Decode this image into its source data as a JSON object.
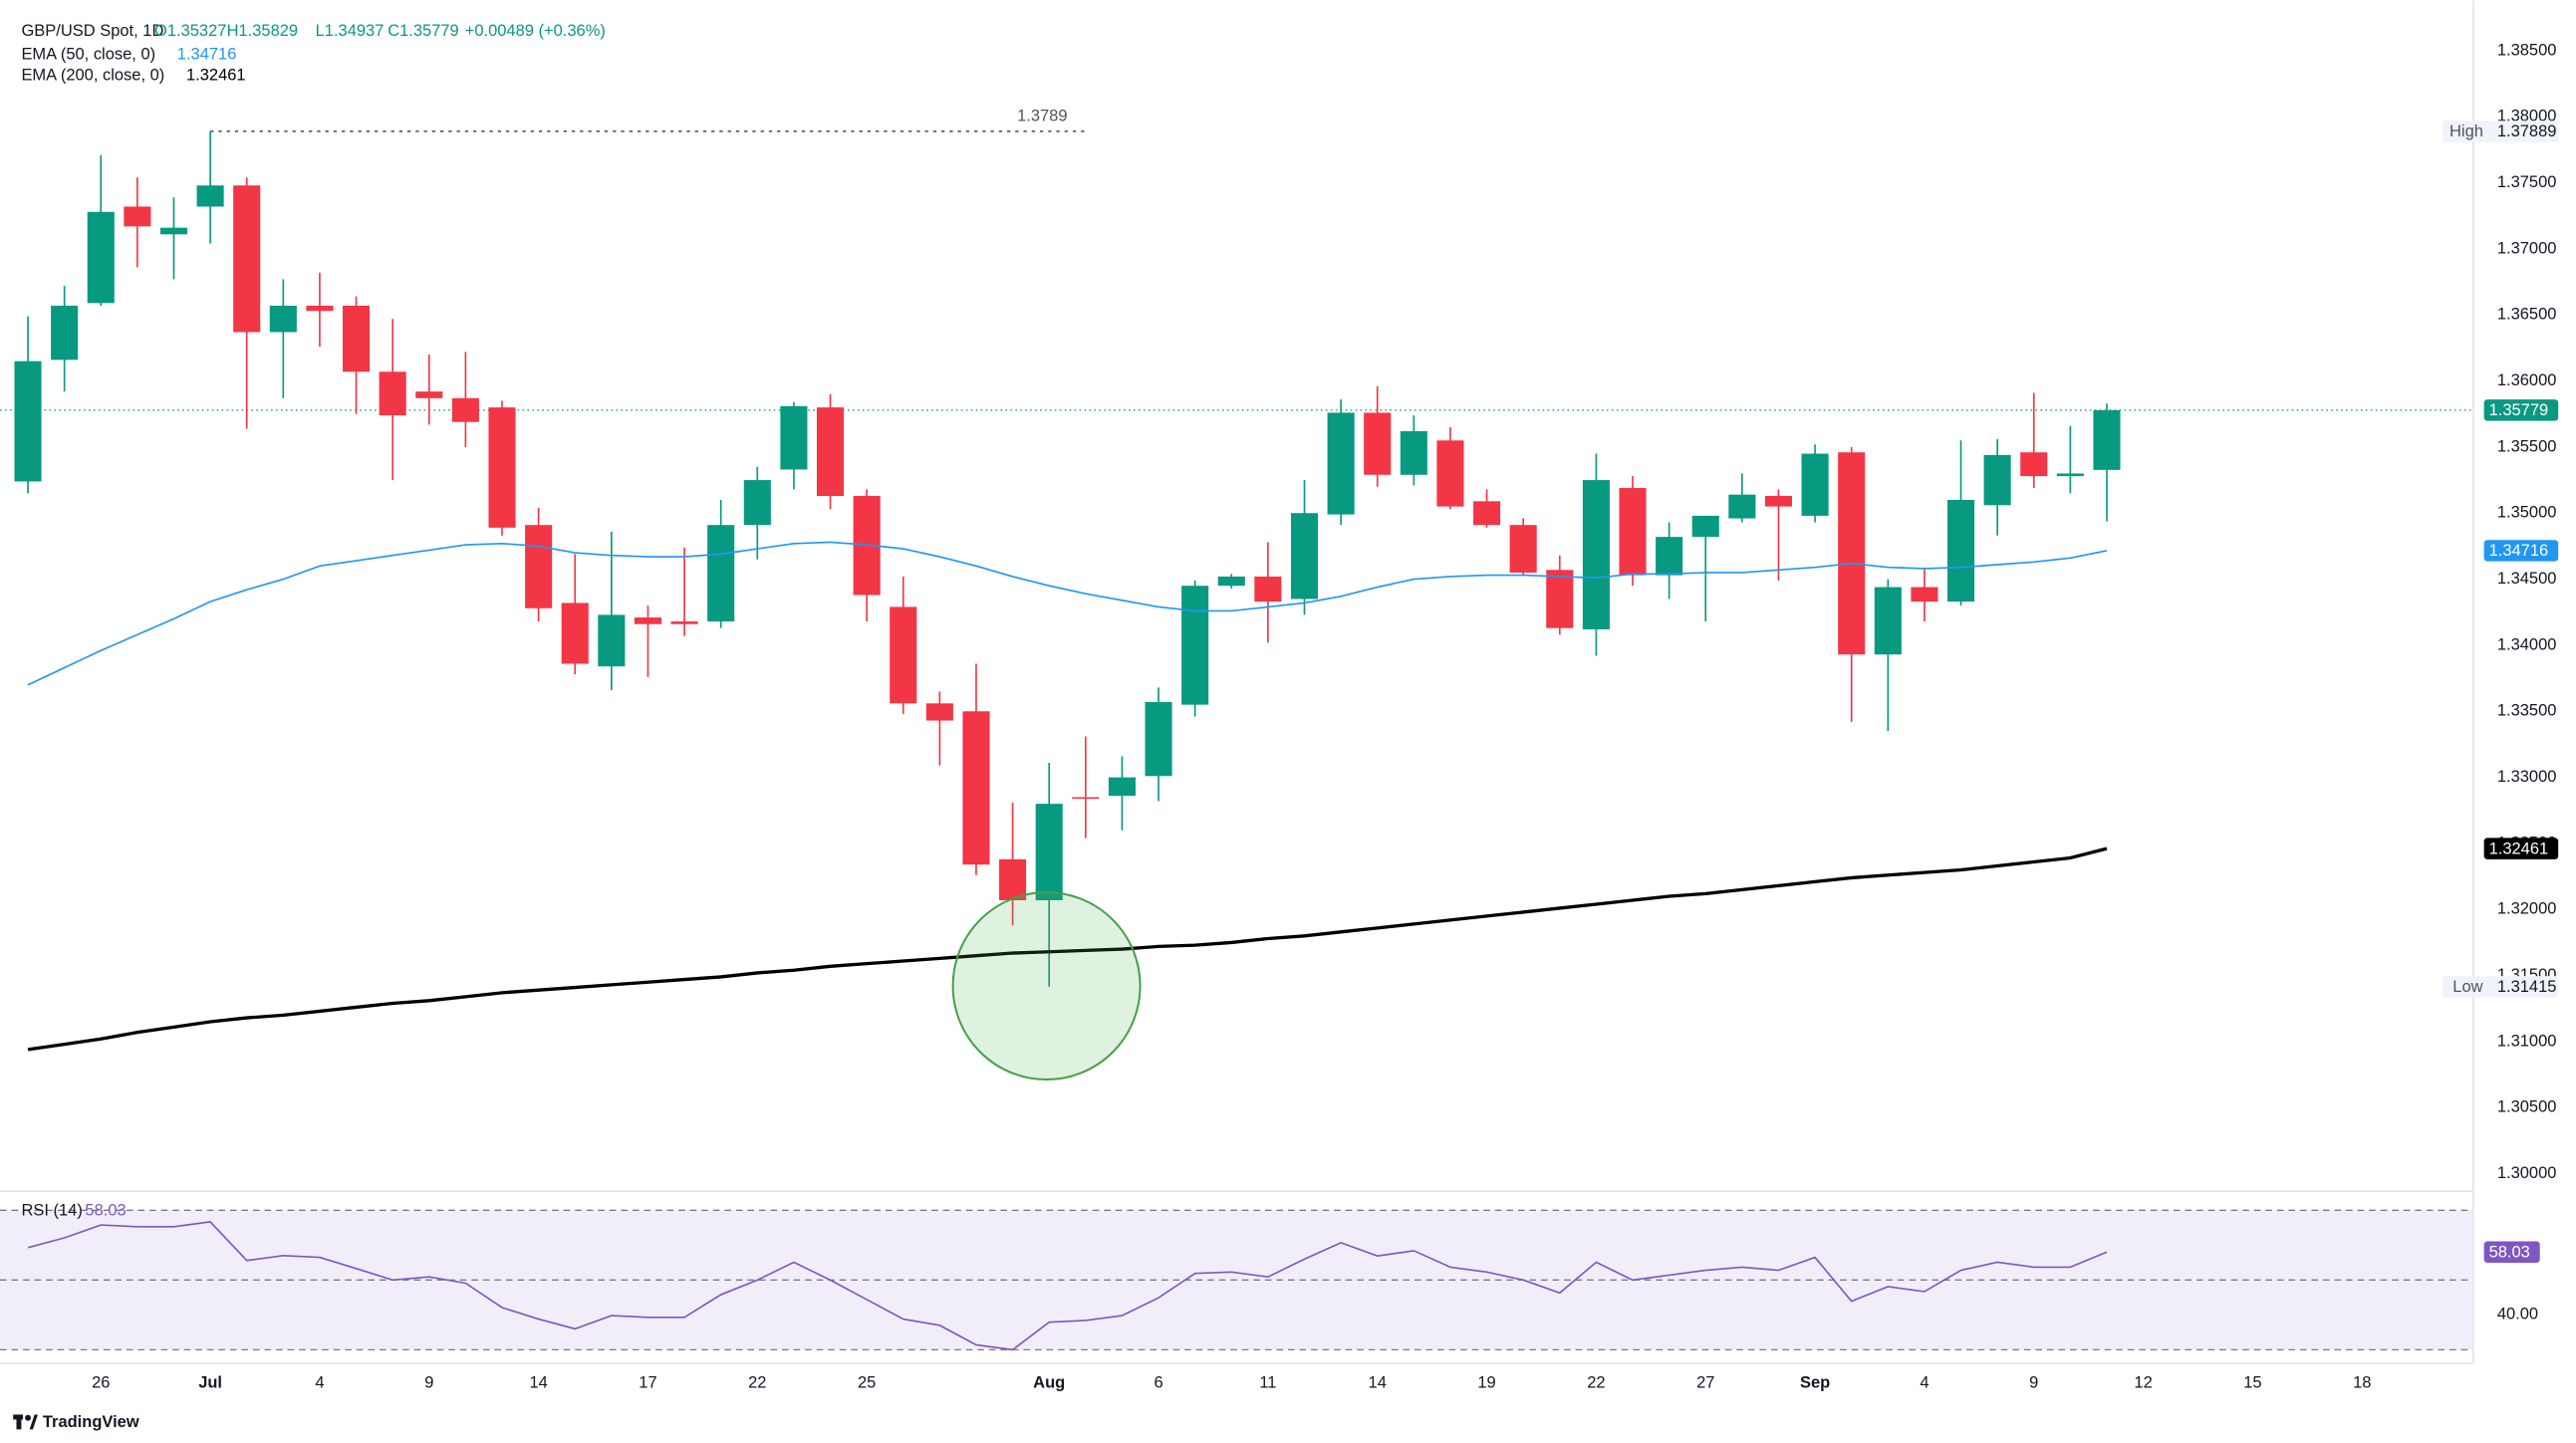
{
  "header": {
    "symbol": "GBP/USD Spot, 1D",
    "open": "O1.35327",
    "high": "H1.35829",
    "low": "L1.34937",
    "close": "C1.35779",
    "change": "+0.00489 (+0.36%)"
  },
  "branding": "TradingView",
  "chart_data": [
    {
      "type": "candlestick",
      "categories": [
        null,
        null,
        "26",
        null,
        null,
        "Jul",
        null,
        null,
        "4",
        null,
        null,
        "9",
        null,
        null,
        "14",
        null,
        null,
        "17",
        null,
        null,
        "22",
        null,
        null,
        "25",
        null,
        null,
        null,
        null,
        "Aug",
        null,
        null,
        "6",
        null,
        null,
        "11",
        null,
        null,
        "14",
        null,
        null,
        "19",
        null,
        null,
        "22",
        null,
        null,
        "27",
        null,
        null,
        "Sep",
        null,
        null,
        "4",
        null,
        null,
        "9",
        null,
        null,
        "12",
        null,
        null,
        "15",
        null,
        null,
        "18"
      ],
      "open": [
        1.3524,
        1.3616,
        1.3659,
        1.3732,
        1.3711,
        1.3732,
        1.3748,
        1.3637,
        1.3657,
        1.3657,
        1.3607,
        1.3592,
        1.3587,
        1.358,
        1.3491,
        1.3432,
        1.3384,
        1.3421,
        1.3418,
        1.3418,
        1.3491,
        1.3533,
        1.358,
        1.3513,
        1.3429,
        1.3356,
        1.335,
        1.3238,
        1.3207,
        1.3285,
        1.3286,
        1.3301,
        1.3355,
        1.3445,
        1.3452,
        1.3435,
        1.3499,
        1.3576,
        1.3529,
        1.3555,
        1.3509,
        1.3491,
        1.3457,
        1.3412,
        1.3519,
        1.3453,
        1.3482,
        1.3496,
        1.3513,
        1.3498,
        1.3546,
        1.3393,
        1.3444,
        1.3433,
        1.3506,
        1.3546,
        1.3528,
        1.35327,
        null,
        null,
        null,
        null,
        null,
        null,
        null
      ],
      "high": [
        1.3649,
        1.3672,
        1.3771,
        1.3754,
        1.3739,
        1.37889,
        1.3754,
        1.3677,
        1.3682,
        1.3664,
        1.3647,
        1.362,
        1.3622,
        1.3585,
        1.3504,
        1.3469,
        1.3486,
        1.343,
        1.3474,
        1.351,
        1.3535,
        1.3584,
        1.359,
        1.3518,
        1.3452,
        1.3365,
        1.3386,
        1.3281,
        1.3311,
        1.3331,
        1.3316,
        1.3368,
        1.3449,
        1.3454,
        1.3478,
        1.3525,
        1.3586,
        1.3596,
        1.3574,
        1.3565,
        1.3518,
        1.3496,
        1.3468,
        1.3545,
        1.3528,
        1.3493,
        1.3498,
        1.353,
        1.3518,
        1.3552,
        1.355,
        1.345,
        1.3458,
        1.3555,
        1.3556,
        1.3591,
        1.3566,
        1.35829,
        null,
        null,
        null,
        null,
        null,
        null,
        null
      ],
      "low": [
        1.3515,
        1.3592,
        1.3657,
        1.3686,
        1.3677,
        1.3704,
        1.3564,
        1.3587,
        1.3626,
        1.3575,
        1.3525,
        1.3567,
        1.355,
        1.3483,
        1.3418,
        1.3378,
        1.3366,
        1.3376,
        1.3407,
        1.3413,
        1.3465,
        1.3518,
        1.3503,
        1.3418,
        1.3348,
        1.3309,
        1.3226,
        1.3188,
        1.31415,
        1.3254,
        1.326,
        1.3282,
        1.3346,
        1.3443,
        1.3402,
        1.3423,
        1.3491,
        1.352,
        1.3521,
        1.3503,
        1.3489,
        1.3453,
        1.3408,
        1.3392,
        1.3445,
        1.3435,
        1.3418,
        1.3493,
        1.3449,
        1.3493,
        1.3342,
        1.3335,
        1.3418,
        1.343,
        1.3483,
        1.3519,
        1.3515,
        1.34937,
        null,
        null,
        null,
        null,
        null,
        null,
        null
      ],
      "close": [
        1.3615,
        1.3657,
        1.3728,
        1.3717,
        1.3716,
        1.3748,
        1.3637,
        1.3657,
        1.3653,
        1.3607,
        1.3574,
        1.3587,
        1.3569,
        1.3489,
        1.3428,
        1.3386,
        1.3423,
        1.3416,
        1.3416,
        1.3491,
        1.3525,
        1.3581,
        1.3513,
        1.3438,
        1.3356,
        1.3343,
        1.3234,
        1.3207,
        1.328,
        1.3284,
        1.33,
        1.3357,
        1.3445,
        1.3452,
        1.3433,
        1.35,
        1.3576,
        1.3529,
        1.3562,
        1.3505,
        1.3491,
        1.3455,
        1.3413,
        1.3525,
        1.3453,
        1.3482,
        1.3498,
        1.3514,
        1.3505,
        1.3545,
        1.3393,
        1.3444,
        1.3433,
        1.351,
        1.3544,
        1.3528,
        1.353,
        1.35779,
        null,
        null,
        null,
        null,
        null,
        null,
        null
      ],
      "up_color": "#089981",
      "down_color": "#f23645",
      "series": [
        {
          "name": "EMA (50, close, 0)",
          "color": "#2196f3",
          "values": [
            1.337,
            1.3383,
            1.3396,
            1.3408,
            1.342,
            1.3433,
            1.3442,
            1.345,
            1.346,
            1.3464,
            1.3468,
            1.3472,
            1.3476,
            1.3477,
            1.3475,
            1.347,
            1.3468,
            1.3467,
            1.3467,
            1.3469,
            1.3473,
            1.3477,
            1.3478,
            1.3476,
            1.3473,
            1.3467,
            1.346,
            1.3452,
            1.3445,
            1.3439,
            1.3434,
            1.3429,
            1.3426,
            1.3426,
            1.3429,
            1.3432,
            1.3437,
            1.3444,
            1.345,
            1.3452,
            1.3453,
            1.3453,
            1.3452,
            1.3451,
            1.3454,
            1.3454,
            1.3455,
            1.3455,
            1.3457,
            1.3459,
            1.3462,
            1.3459,
            1.3458,
            1.3459,
            1.3461,
            1.3463,
            1.3466,
            1.34716,
            null,
            null,
            null,
            null,
            null,
            null,
            null
          ]
        },
        {
          "name": "EMA (200, close, 0)",
          "color": "#000000",
          "values": [
            1.3094,
            1.3098,
            1.3102,
            1.3107,
            1.3111,
            1.3115,
            1.3118,
            1.312,
            1.3123,
            1.3126,
            1.3129,
            1.3131,
            1.3134,
            1.3137,
            1.3139,
            1.3141,
            1.3143,
            1.3145,
            1.3147,
            1.3149,
            1.3152,
            1.3154,
            1.3157,
            1.3159,
            1.3161,
            1.3163,
            1.3165,
            1.3167,
            1.3168,
            1.3169,
            1.317,
            1.3172,
            1.3173,
            1.3175,
            1.3178,
            1.318,
            1.3183,
            1.3186,
            1.3189,
            1.3192,
            1.3195,
            1.3198,
            1.3201,
            1.3204,
            1.3207,
            1.321,
            1.3212,
            1.3215,
            1.3218,
            1.3221,
            1.3224,
            1.3226,
            1.3228,
            1.323,
            1.3233,
            1.3236,
            1.3239,
            1.32461,
            null,
            null,
            null,
            null,
            null,
            null,
            null
          ]
        }
      ],
      "ylim": [
        1.2988,
        1.3888
      ],
      "yticks": [
        {
          "value": 1.3,
          "label": "1.30000"
        },
        {
          "value": 1.305,
          "label": "1.30500"
        },
        {
          "value": 1.31,
          "label": "1.31000"
        },
        {
          "value": 1.315,
          "label": "1.31500"
        },
        {
          "value": 1.32,
          "label": "1.32000"
        },
        {
          "value": 1.325,
          "label": "1.32500"
        },
        {
          "value": 1.33,
          "label": "1.33000"
        },
        {
          "value": 1.335,
          "label": "1.33500"
        },
        {
          "value": 1.34,
          "label": "1.34000"
        },
        {
          "value": 1.345,
          "label": "1.34500"
        },
        {
          "value": 1.35,
          "label": "1.35000"
        },
        {
          "value": 1.355,
          "label": "1.35500"
        },
        {
          "value": 1.36,
          "label": "1.36000"
        },
        {
          "value": 1.365,
          "label": "1.36500"
        },
        {
          "value": 1.37,
          "label": "1.37000"
        },
        {
          "value": 1.375,
          "label": "1.37500"
        },
        {
          "value": 1.38,
          "label": "1.38000"
        },
        {
          "value": 1.385,
          "label": "1.38500"
        }
      ],
      "grid": false,
      "high_marker": "High",
      "low_marker": "Low",
      "annotations": [
        {
          "value": 1.3789,
          "label": "1.3789"
        }
      ]
    },
    {
      "type": "line",
      "series": [
        {
          "name": "RSI (14)",
          "color": "#7e57c2",
          "values": [
            59.3,
            62.1,
            65.8,
            65.3,
            65.3,
            66.7,
            55.6,
            57.0,
            56.5,
            53.3,
            50.0,
            50.9,
            49.1,
            42.1,
            38.8,
            36.0,
            39.8,
            39.3,
            39.3,
            45.8,
            50.0,
            55.1,
            50.0,
            44.4,
            38.8,
            37.0,
            31.4,
            30.0,
            37.9,
            38.4,
            39.8,
            44.9,
            51.9,
            52.3,
            50.9,
            56.0,
            60.7,
            56.9,
            58.4,
            53.7,
            52.3,
            50.0,
            46.3,
            55.1,
            50.0,
            51.4,
            52.8,
            53.7,
            52.8,
            56.5,
            43.9,
            48.1,
            46.7,
            52.8,
            55.1,
            53.7,
            53.7,
            58.03,
            null,
            null,
            null,
            null,
            null,
            null,
            null
          ]
        }
      ],
      "ylim": [
        26,
        75
      ],
      "yticks": [
        {
          "value": 40,
          "label": "40.00"
        }
      ],
      "levels": [
        30,
        50,
        70
      ],
      "band_color": "#7e57c2"
    }
  ]
}
